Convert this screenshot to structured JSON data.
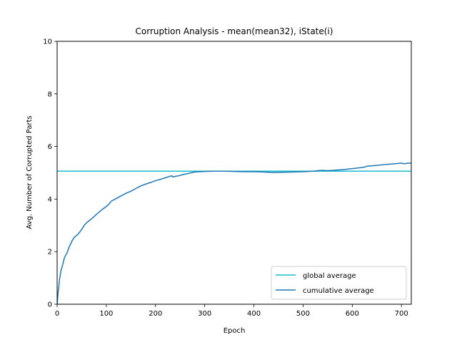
{
  "chart_data": {
    "type": "line",
    "title": "Corruption Analysis - mean(mean32), iState(i)",
    "xlabel": "Epoch",
    "ylabel": "Avg. Number of Corrupted Parts",
    "xlim": [
      0,
      720
    ],
    "ylim": [
      0,
      10
    ],
    "xticks": [
      0,
      100,
      200,
      300,
      400,
      500,
      600,
      700
    ],
    "yticks": [
      0,
      2,
      4,
      6,
      8,
      10
    ],
    "grid": false,
    "legend_position": "lower-right",
    "series": [
      {
        "name": "global average",
        "kind": "hline",
        "value": 5.06,
        "color": "#17becf"
      },
      {
        "name": "cumulative average",
        "kind": "line",
        "color": "#1f77b4",
        "x": [
          0,
          2,
          5,
          8,
          12,
          15,
          20,
          25,
          30,
          35,
          40,
          45,
          50,
          55,
          60,
          70,
          80,
          90,
          100,
          105,
          110,
          120,
          130,
          140,
          150,
          160,
          170,
          180,
          190,
          200,
          210,
          220,
          230,
          234,
          235,
          240,
          250,
          260,
          270,
          280,
          290,
          300,
          320,
          340,
          360,
          380,
          400,
          420,
          440,
          460,
          480,
          500,
          520,
          530,
          540,
          550,
          560,
          580,
          600,
          620,
          625,
          630,
          650,
          670,
          690,
          700,
          705,
          710,
          720
        ],
        "y": [
          0.0,
          0.45,
          0.95,
          1.3,
          1.55,
          1.78,
          1.95,
          2.2,
          2.4,
          2.55,
          2.62,
          2.72,
          2.85,
          3.0,
          3.1,
          3.25,
          3.42,
          3.58,
          3.72,
          3.8,
          3.92,
          4.02,
          4.12,
          4.22,
          4.3,
          4.4,
          4.5,
          4.57,
          4.63,
          4.7,
          4.75,
          4.81,
          4.87,
          4.88,
          4.84,
          4.86,
          4.9,
          4.95,
          4.99,
          5.03,
          5.04,
          5.05,
          5.06,
          5.06,
          5.05,
          5.04,
          5.04,
          5.03,
          5.01,
          5.02,
          5.03,
          5.04,
          5.06,
          5.08,
          5.09,
          5.08,
          5.09,
          5.12,
          5.16,
          5.2,
          5.22,
          5.25,
          5.28,
          5.32,
          5.35,
          5.37,
          5.34,
          5.36,
          5.37
        ]
      }
    ]
  }
}
